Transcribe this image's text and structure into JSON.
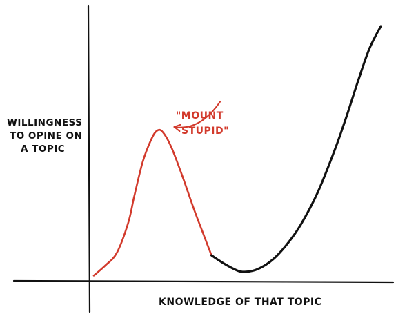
{
  "chart_data": {
    "type": "line",
    "title": "",
    "ylabel_lines": [
      "WILLINGNESS",
      "TO OPINE ON",
      "A TOPIC"
    ],
    "xlabel": "KNOWLEDGE OF THAT TOPIC",
    "annotation_lines": [
      "\"MOUNT",
      "STUPID\""
    ],
    "grid": false,
    "legend": "none",
    "xlim": [
      0,
      100
    ],
    "ylim": [
      0,
      100
    ],
    "series": [
      {
        "color": "#d23a2c",
        "points": [
          [
            0,
            1
          ],
          [
            4,
            5
          ],
          [
            8,
            10
          ],
          [
            12,
            22
          ],
          [
            14,
            32
          ],
          [
            17,
            46
          ],
          [
            20,
            55
          ],
          [
            22,
            58.5
          ],
          [
            24,
            58
          ],
          [
            27,
            52
          ],
          [
            31,
            40
          ],
          [
            35,
            27
          ],
          [
            38,
            18
          ],
          [
            41,
            9
          ]
        ]
      },
      {
        "color": "#111111",
        "points": [
          [
            41,
            9
          ],
          [
            45,
            6
          ],
          [
            50,
            3
          ],
          [
            53,
            2.5
          ],
          [
            57,
            3.5
          ],
          [
            62,
            7
          ],
          [
            67,
            13
          ],
          [
            72,
            21
          ],
          [
            78,
            34
          ],
          [
            84,
            51
          ],
          [
            88,
            64
          ],
          [
            92,
            78
          ],
          [
            96,
            91
          ],
          [
            100,
            100
          ]
        ]
      }
    ],
    "annotation_arrow": {
      "from": [
        44,
        70
      ],
      "to": [
        28,
        60
      ]
    }
  }
}
